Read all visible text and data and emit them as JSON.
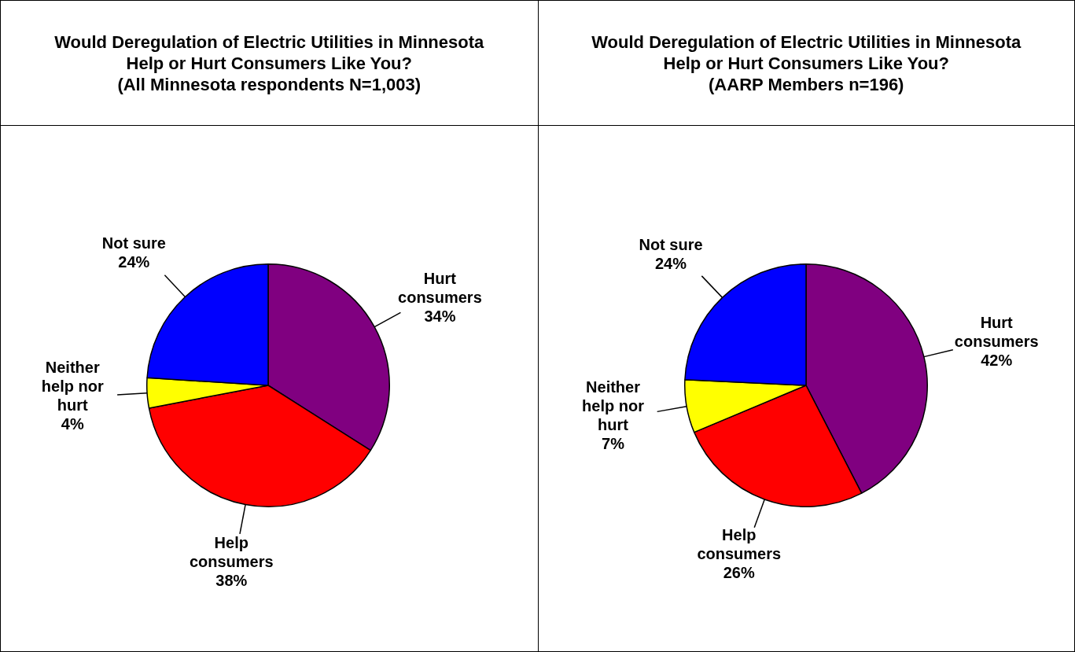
{
  "chart_data": [
    {
      "type": "pie",
      "title": "Would Deregulation of Electric Utilities in Minnesota Help or Hurt Consumers Like You?",
      "subtitle": "(All Minnesota respondents N=1,003)",
      "categories": [
        "Hurt consumers",
        "Help consumers",
        "Neither help nor hurt",
        "Not sure"
      ],
      "values": [
        34,
        38,
        4,
        24
      ],
      "value_labels": [
        "34%",
        "38%",
        "4%",
        "24%"
      ],
      "colors": [
        "#800080",
        "#ff0000",
        "#ffff00",
        "#0000ff"
      ],
      "legend": false
    },
    {
      "type": "pie",
      "title": "Would Deregulation of Electric Utilities in Minnesota Help or Hurt Consumers Like You?",
      "subtitle": "(AARP Members n=196)",
      "categories": [
        "Hurt consumers",
        "Help consumers",
        "Neither help nor hurt",
        "Not sure"
      ],
      "values": [
        42,
        26,
        7,
        24
      ],
      "value_labels": [
        "42%",
        "26%",
        "7%",
        "24%"
      ],
      "colors": [
        "#800080",
        "#ff0000",
        "#ffff00",
        "#0000ff"
      ],
      "legend": false
    }
  ]
}
